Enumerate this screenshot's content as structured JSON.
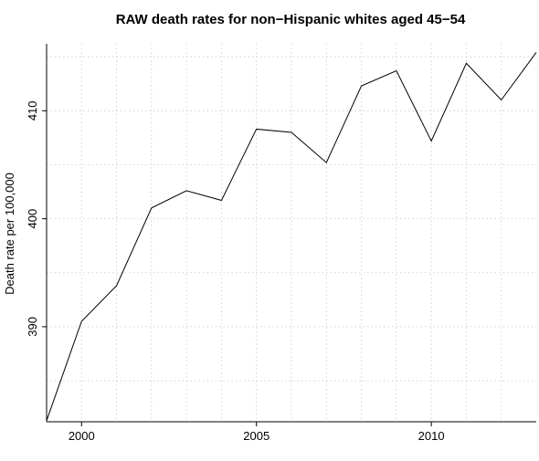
{
  "chart_data": {
    "type": "line",
    "title": "RAW death rates for non−Hispanic whites aged 45−54",
    "xlabel": "",
    "ylabel": "Death rate per 100,000",
    "xlim": [
      1999,
      2013
    ],
    "ylim": [
      381.2,
      416.2
    ],
    "grid": true,
    "x_ticks": [
      2000,
      2005,
      2010
    ],
    "x_tick_labels": [
      "2000",
      "2005",
      "2010"
    ],
    "x_grid": [
      2000,
      2001,
      2002,
      2003,
      2004,
      2005,
      2006,
      2007,
      2008,
      2009,
      2010,
      2011,
      2012
    ],
    "y_ticks": [
      390,
      400,
      410
    ],
    "y_tick_labels": [
      "390",
      "400",
      "410"
    ],
    "y_grid": [
      385,
      390,
      395,
      400,
      405,
      410,
      415
    ],
    "series": [
      {
        "name": "",
        "color": "#000000",
        "x": [
          1999,
          2000,
          2001,
          2002,
          2003,
          2004,
          2005,
          2006,
          2007,
          2008,
          2009,
          2010,
          2011,
          2012,
          2013
        ],
        "values": [
          381.3,
          390.5,
          393.8,
          401.0,
          402.6,
          401.7,
          408.3,
          408.0,
          405.2,
          412.3,
          413.7,
          407.2,
          414.4,
          411.0,
          415.4
        ]
      }
    ]
  }
}
